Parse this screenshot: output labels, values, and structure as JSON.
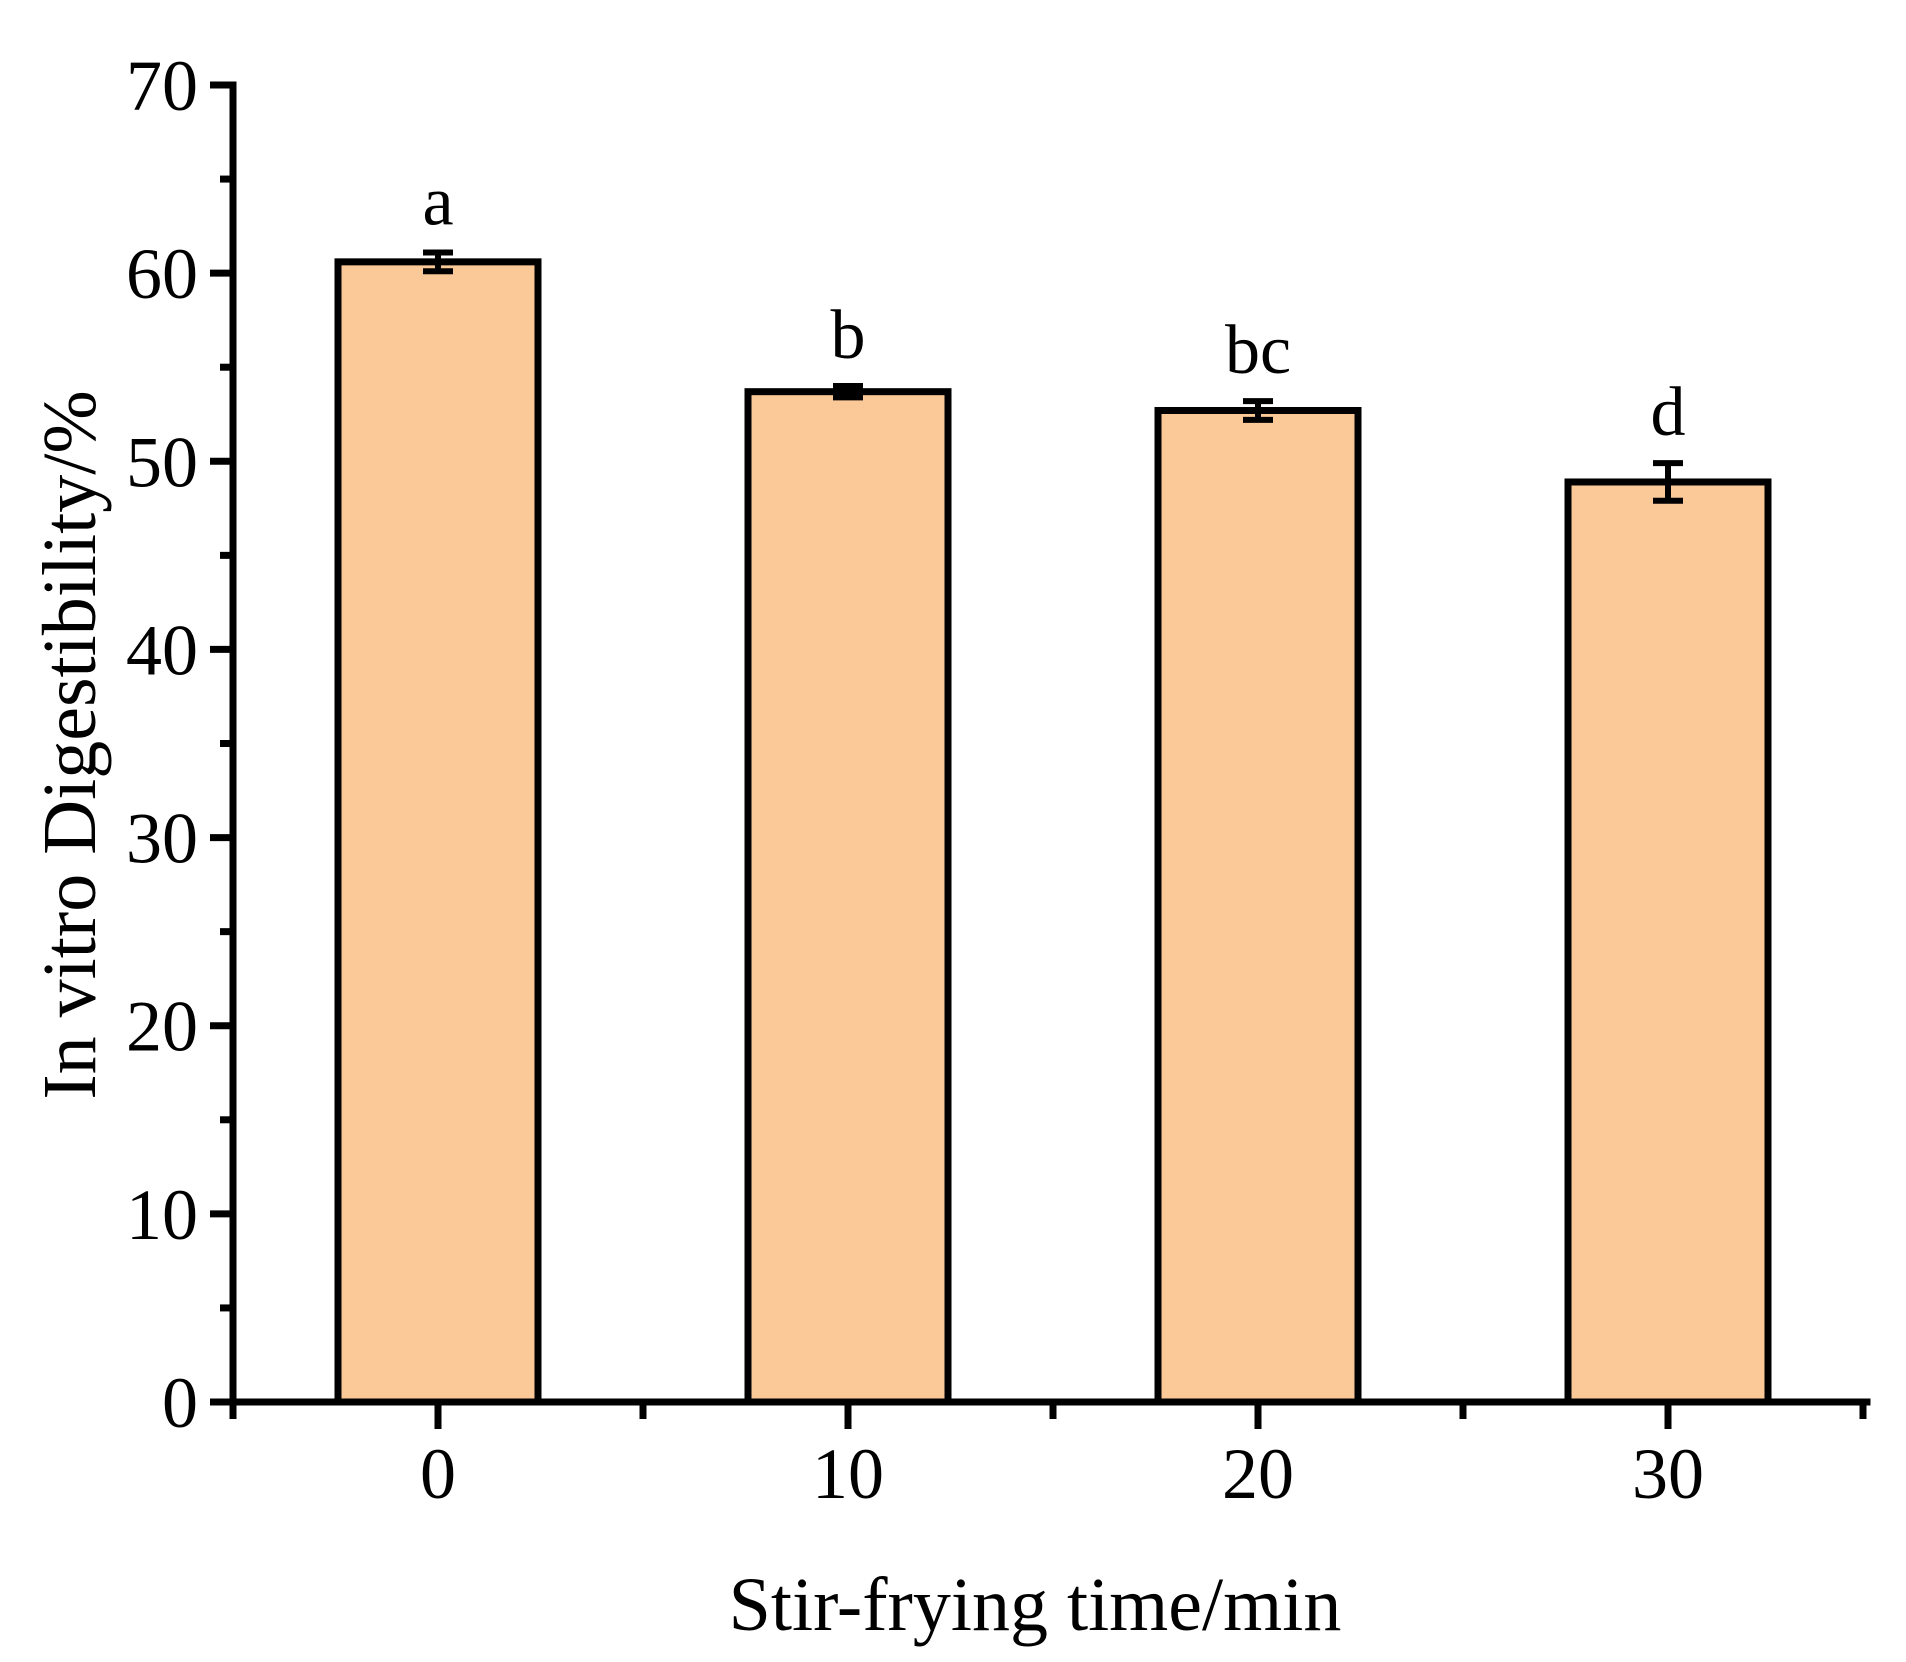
{
  "chart_data": {
    "type": "bar",
    "title": "",
    "xlabel": "Stir-frying time/min",
    "ylabel": "In vitro Digestibility/%",
    "categories": [
      "0",
      "10",
      "20",
      "30"
    ],
    "series": [
      {
        "name": "In vitro digestibility",
        "values": [
          60.6,
          53.7,
          52.7,
          48.9
        ],
        "errors": [
          0.5,
          0.3,
          0.5,
          1.0
        ],
        "sig_letters": [
          "a",
          "b",
          "bc",
          "d"
        ]
      }
    ],
    "ylim": [
      0,
      70
    ],
    "y_major_ticks": [
      0,
      10,
      20,
      30,
      40,
      50,
      60,
      70
    ],
    "y_minor_step": 5,
    "grid": false,
    "legend": null,
    "colors": {
      "bar_fill": "#FBC897",
      "bar_border": "#000000",
      "axis": "#000000",
      "error_bar": "#000000",
      "background": "#ffffff"
    }
  }
}
